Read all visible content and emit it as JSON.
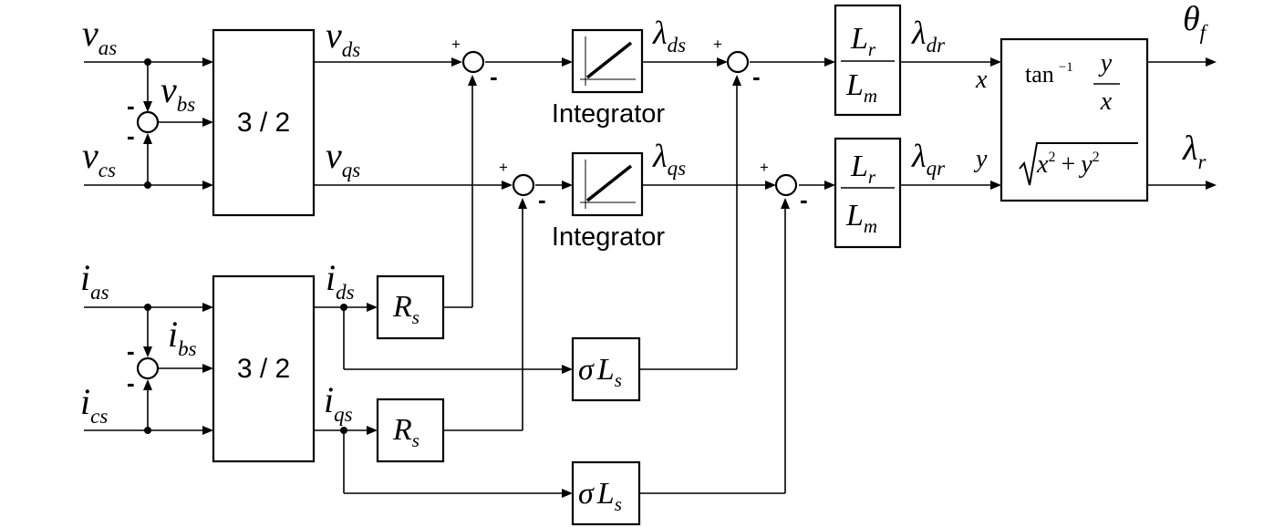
{
  "inputs": {
    "v_as": {
      "base": "v",
      "sub": "as"
    },
    "v_bs": {
      "base": "v",
      "sub": "bs"
    },
    "v_cs": {
      "base": "v",
      "sub": "cs"
    },
    "i_as": {
      "base": "i",
      "sub": "as"
    },
    "i_bs": {
      "base": "i",
      "sub": "bs"
    },
    "i_cs": {
      "base": "i",
      "sub": "cs"
    }
  },
  "signals": {
    "v_ds": {
      "base": "v",
      "sub": "ds"
    },
    "v_qs": {
      "base": "v",
      "sub": "qs"
    },
    "i_ds": {
      "base": "i",
      "sub": "ds"
    },
    "i_qs": {
      "base": "i",
      "sub": "qs"
    },
    "lambda_ds": {
      "base": "λ",
      "sub": "ds"
    },
    "lambda_qs": {
      "base": "λ",
      "sub": "qs"
    },
    "lambda_dr": {
      "base": "λ",
      "sub": "dr"
    },
    "lambda_qr": {
      "base": "λ",
      "sub": "qr"
    },
    "x": "x",
    "y": "y"
  },
  "outputs": {
    "theta_f": {
      "base": "θ",
      "sub": "f"
    },
    "lambda_r": {
      "base": "λ",
      "sub": "r"
    }
  },
  "blocks": {
    "transform_label": "3 / 2",
    "integrator_label": "Integrator",
    "resistance": {
      "base": "R",
      "sub": "s"
    },
    "leakage": {
      "sigma": "σ",
      "base": "L",
      "sub": "s"
    },
    "ratio": {
      "num_base": "L",
      "num_sub": "r",
      "den_base": "L",
      "den_sub": "m"
    },
    "angle": {
      "func": "tan",
      "exp": "−1",
      "num": "y",
      "den": "x"
    },
    "magnitude": {
      "x": "x",
      "y": "y",
      "exp": "2",
      "plus": "+"
    }
  },
  "signs": {
    "plus": "+",
    "minus": "-"
  }
}
